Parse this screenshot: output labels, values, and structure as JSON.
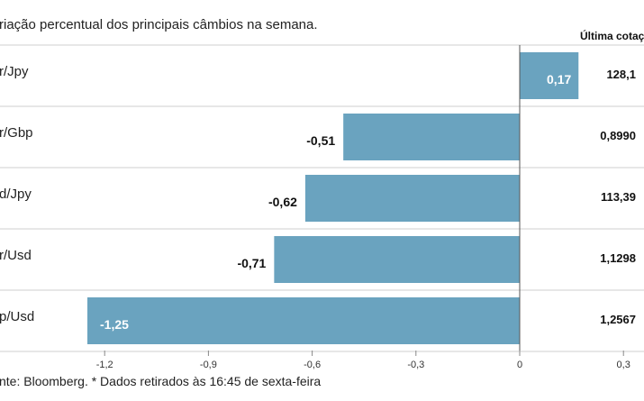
{
  "header": {
    "subtitle": "riação percentual dos principais câmbios na semana.",
    "quote_column_title": "Última cotaç"
  },
  "footer": {
    "source": "nte: Bloomberg.  * Dados retirados às 16:45 de sexta-feira"
  },
  "colors": {
    "bar": "#6aa3bf",
    "label_inside": "#ffffff",
    "label_outside": "#111111",
    "row_line": "#cfcfcf",
    "zero_line": "#555555"
  },
  "chart_data": {
    "type": "bar",
    "orientation": "horizontal",
    "categories": [
      "r/Jpy",
      "r/Gbp",
      "d/Jpy",
      "r/Usd",
      "p/Usd"
    ],
    "values": [
      0.17,
      -0.51,
      -0.62,
      -0.71,
      -1.25
    ],
    "value_labels": [
      "0,17",
      "-0,51",
      "-0,62",
      "-0,71",
      "-1,25"
    ],
    "last_quotes": [
      "128,1",
      "0,8990",
      "113,39",
      "1,1298",
      "1,2567"
    ],
    "xlim": [
      -1.3,
      0.3
    ],
    "xticks": [
      -1.2,
      -0.9,
      -0.6,
      -0.3,
      0,
      0.3
    ],
    "xtick_labels": [
      "-1,2",
      "-0,9",
      "-0,6",
      "-0,3",
      "0",
      "0,3"
    ],
    "grid": false,
    "legend": "none"
  }
}
